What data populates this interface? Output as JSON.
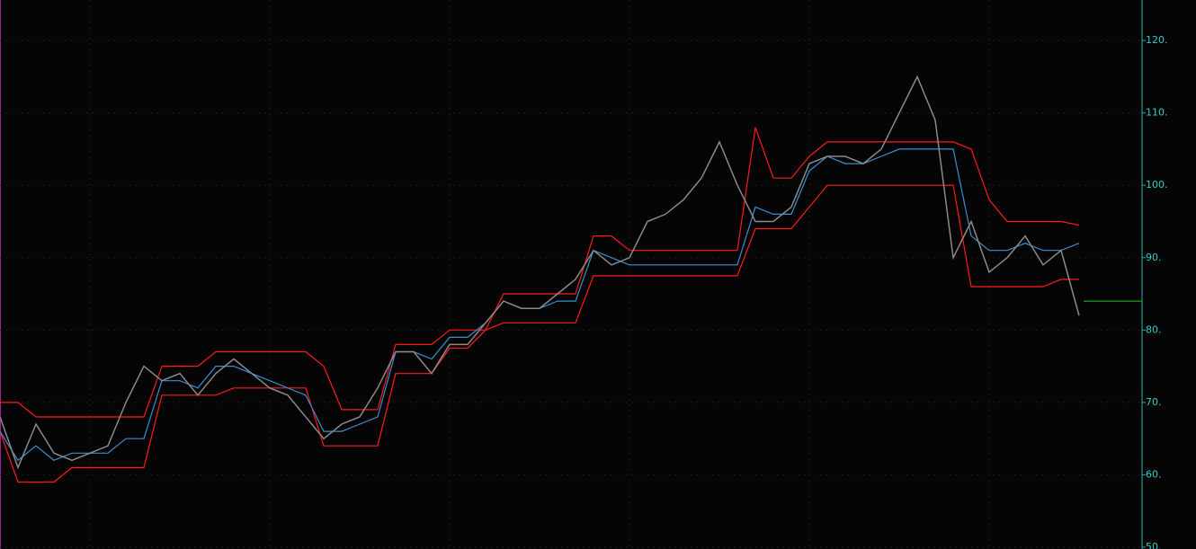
{
  "chart_data": {
    "type": "line",
    "ylim": [
      49.75,
      125.6
    ],
    "yticks": [
      {
        "value": 50,
        "label": "50."
      },
      {
        "value": 60,
        "label": "60."
      },
      {
        "value": 70,
        "label": "70."
      },
      {
        "value": 80,
        "label": "80."
      },
      {
        "value": 90,
        "label": "90."
      },
      {
        "value": 100,
        "label": "100."
      },
      {
        "value": 110,
        "label": "110."
      },
      {
        "value": 120,
        "label": "120."
      }
    ],
    "grid": true,
    "categories": [
      null,
      null,
      null,
      null,
      null,
      null,
      null,
      null,
      null,
      null,
      null,
      null,
      null,
      null,
      null,
      null,
      null,
      null,
      null,
      null,
      null,
      null,
      null,
      null,
      null,
      null,
      null,
      null,
      null,
      null,
      null,
      null,
      null,
      null,
      null,
      null,
      null,
      null,
      null,
      null,
      null,
      null,
      null,
      null,
      null,
      null,
      null,
      null,
      null,
      null,
      null,
      null,
      null,
      null,
      null,
      null,
      null,
      null,
      null,
      null,
      null
    ],
    "series": [
      {
        "color": "#ff1a1a",
        "values": [
          70,
          70,
          68,
          68,
          68,
          68,
          68,
          68,
          68,
          75,
          75,
          75,
          77,
          77,
          77,
          77,
          77,
          77,
          75,
          69,
          69,
          69,
          78,
          78,
          78,
          80,
          80,
          80,
          85,
          85,
          85,
          85,
          85,
          93,
          93,
          91,
          91,
          91,
          91,
          91,
          91,
          91,
          108,
          101,
          101,
          104,
          106,
          106,
          106,
          106,
          106,
          106,
          106,
          106,
          105,
          98,
          95,
          95,
          95,
          95,
          94.5
        ]
      },
      {
        "color": "#ff1a1a",
        "values": [
          66,
          59,
          59,
          59,
          61,
          61,
          61,
          61,
          61,
          71,
          71,
          71,
          71,
          72,
          72,
          72,
          72,
          72,
          64,
          64,
          64,
          64,
          74,
          74,
          74,
          77.5,
          77.5,
          80,
          81,
          81,
          81,
          81,
          81,
          87.5,
          87.5,
          87.5,
          87.5,
          87.5,
          87.5,
          87.5,
          87.5,
          87.5,
          94,
          94,
          94,
          97,
          100,
          100,
          100,
          100,
          100,
          100,
          100,
          100,
          86,
          86,
          86,
          86,
          86,
          87,
          87
        ]
      },
      {
        "color": "#3a8fd0",
        "values": [
          66,
          62,
          64,
          62,
          63,
          63,
          63,
          65,
          65,
          73,
          73,
          72,
          75,
          75,
          74,
          73,
          72,
          71,
          66,
          66,
          67,
          68,
          77,
          77,
          76,
          79,
          79,
          81,
          84,
          83,
          83,
          84,
          84,
          91,
          90,
          89,
          89,
          89,
          89,
          89,
          89,
          89,
          97,
          96,
          96,
          102,
          104,
          103,
          103,
          104,
          105,
          105,
          105,
          105,
          93,
          91,
          91,
          92,
          91,
          91,
          92
        ]
      },
      {
        "color": "#8a8a8a",
        "values": [
          68,
          61,
          67,
          63,
          62,
          63,
          64,
          70,
          75,
          73,
          74,
          71,
          74,
          76,
          74,
          72,
          71,
          68,
          65,
          67,
          68,
          72,
          77,
          77,
          74,
          78,
          78,
          81,
          84,
          83,
          83,
          85,
          87,
          91,
          89,
          90,
          95,
          96,
          98,
          101,
          106,
          100,
          95,
          95,
          97,
          103,
          104,
          104,
          103,
          105,
          110,
          115,
          109,
          90,
          95,
          88,
          90,
          93,
          89,
          91,
          82
        ]
      }
    ],
    "last_value": 84,
    "last_color": "#22cc22"
  }
}
